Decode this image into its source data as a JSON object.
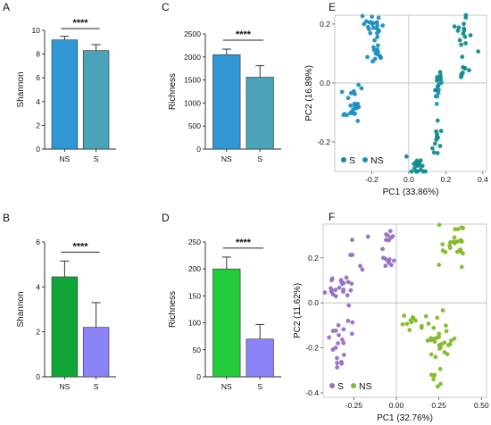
{
  "colors": {
    "blue_ns": "#2f97d3",
    "blue_s": "#4aa3b8",
    "green_ns": "#10a637",
    "purple_s": "#8c83f7",
    "green_bright": "#22cc3a",
    "teal": "#118c8c",
    "pca_teal_ns": "#1f8fbf",
    "pca_purple": "#9670c4",
    "pca_green": "#85b92a"
  },
  "chart_data": [
    {
      "id": "A",
      "type": "bar",
      "letter": "A",
      "categories": [
        "NS",
        "S"
      ],
      "values": [
        9.2,
        8.3
      ],
      "errors": [
        0.3,
        0.5
      ],
      "ylabel": "Shannon",
      "ylim": [
        0,
        10
      ],
      "yticks": [
        "0",
        "2",
        "4",
        "6",
        "8",
        "10"
      ],
      "significance": "****"
    },
    {
      "id": "B",
      "type": "bar",
      "letter": "B",
      "categories": [
        "NS",
        "S"
      ],
      "values": [
        4.45,
        2.2
      ],
      "errors": [
        0.7,
        1.1
      ],
      "ylabel": "Shannon",
      "ylim": [
        0,
        6
      ],
      "yticks": [
        "0",
        "2",
        "4",
        "6"
      ],
      "significance": "****"
    },
    {
      "id": "C",
      "type": "bar",
      "letter": "C",
      "categories": [
        "NS",
        "S"
      ],
      "values": [
        2050,
        1560
      ],
      "errors": [
        120,
        250
      ],
      "ylabel": "Richness",
      "ylim": [
        0,
        2500
      ],
      "yticks": [
        "0",
        "500",
        "1000",
        "1500",
        "2000",
        "2500"
      ],
      "significance": "****"
    },
    {
      "id": "D",
      "type": "bar",
      "letter": "D",
      "categories": [
        "NS",
        "S"
      ],
      "values": [
        200,
        70
      ],
      "errors": [
        22,
        27
      ],
      "ylabel": "Richness",
      "ylim": [
        0,
        250
      ],
      "yticks": [
        "0",
        "50",
        "100",
        "150",
        "200",
        "250"
      ],
      "significance": "****"
    },
    {
      "id": "E",
      "type": "scatter",
      "letter": "E",
      "xlabel": "PC1 (33.86%)",
      "ylabel": "PC2 (16.89%)",
      "xlim": [
        -0.4,
        0.42
      ],
      "ylim": [
        -0.3,
        0.23
      ],
      "xticks": [
        "-0.2",
        "0.0",
        "0.2",
        "0.4"
      ],
      "yticks": [
        "-0.2",
        "0.0",
        "0.2"
      ],
      "legend": [
        "S",
        "NS"
      ],
      "clusters": [
        {
          "series": "NS",
          "center": [
            -0.19,
            0.19
          ],
          "spread": [
            0.025,
            0.022
          ],
          "n": 22
        },
        {
          "series": "NS",
          "center": [
            -0.18,
            0.1
          ],
          "spread": [
            0.018,
            0.02
          ],
          "n": 14
        },
        {
          "series": "NS",
          "center": [
            -0.3,
            -0.08
          ],
          "spread": [
            0.035,
            0.03
          ],
          "n": 24
        },
        {
          "series": "NS",
          "center": [
            0.16,
            -0.01
          ],
          "spread": [
            0.012,
            0.025
          ],
          "n": 10
        },
        {
          "series": "S",
          "center": [
            0.3,
            0.16
          ],
          "spread": [
            0.025,
            0.035
          ],
          "n": 16
        },
        {
          "series": "S",
          "center": [
            0.3,
            0.04
          ],
          "spread": [
            0.015,
            0.015
          ],
          "n": 8
        },
        {
          "series": "S",
          "center": [
            0.16,
            0.0
          ],
          "spread": [
            0.01,
            0.02
          ],
          "n": 8
        },
        {
          "series": "S",
          "center": [
            0.14,
            -0.18
          ],
          "spread": [
            0.015,
            0.04
          ],
          "n": 12
        },
        {
          "series": "S",
          "center": [
            0.06,
            -0.28
          ],
          "spread": [
            0.03,
            0.02
          ],
          "n": 18
        }
      ]
    },
    {
      "id": "F",
      "type": "scatter",
      "letter": "F",
      "xlabel": "PC1 (32.76%)",
      "ylabel": "PC2 (11.62%)",
      "xlim": [
        -0.43,
        0.53
      ],
      "ylim": [
        -0.42,
        0.35
      ],
      "xticks": [
        "-0.25",
        "0.00",
        "0.25",
        "0.50"
      ],
      "yticks": [
        "-0.4",
        "-0.2",
        "0.0",
        "0.2"
      ],
      "legend": [
        "S",
        "NS"
      ],
      "clusters": [
        {
          "series": "S",
          "center": [
            -0.06,
            0.28
          ],
          "spread": [
            0.015,
            0.025
          ],
          "n": 8
        },
        {
          "series": "S",
          "center": [
            -0.05,
            0.19
          ],
          "spread": [
            0.02,
            0.01
          ],
          "n": 8
        },
        {
          "series": "S",
          "center": [
            -0.25,
            0.24
          ],
          "spread": [
            0.04,
            0.04
          ],
          "n": 6
        },
        {
          "series": "S",
          "center": [
            -0.33,
            0.08
          ],
          "spread": [
            0.04,
            0.03
          ],
          "n": 22
        },
        {
          "series": "S",
          "center": [
            -0.33,
            -0.18
          ],
          "spread": [
            0.035,
            0.06
          ],
          "n": 20
        },
        {
          "series": "NS",
          "center": [
            0.35,
            0.25
          ],
          "spread": [
            0.04,
            0.05
          ],
          "n": 26
        },
        {
          "series": "NS",
          "center": [
            0.08,
            -0.08
          ],
          "spread": [
            0.06,
            0.02
          ],
          "n": 12
        },
        {
          "series": "NS",
          "center": [
            0.26,
            -0.18
          ],
          "spread": [
            0.035,
            0.06
          ],
          "n": 30
        },
        {
          "series": "NS",
          "center": [
            0.24,
            -0.33
          ],
          "spread": [
            0.02,
            0.02
          ],
          "n": 6
        }
      ]
    }
  ]
}
